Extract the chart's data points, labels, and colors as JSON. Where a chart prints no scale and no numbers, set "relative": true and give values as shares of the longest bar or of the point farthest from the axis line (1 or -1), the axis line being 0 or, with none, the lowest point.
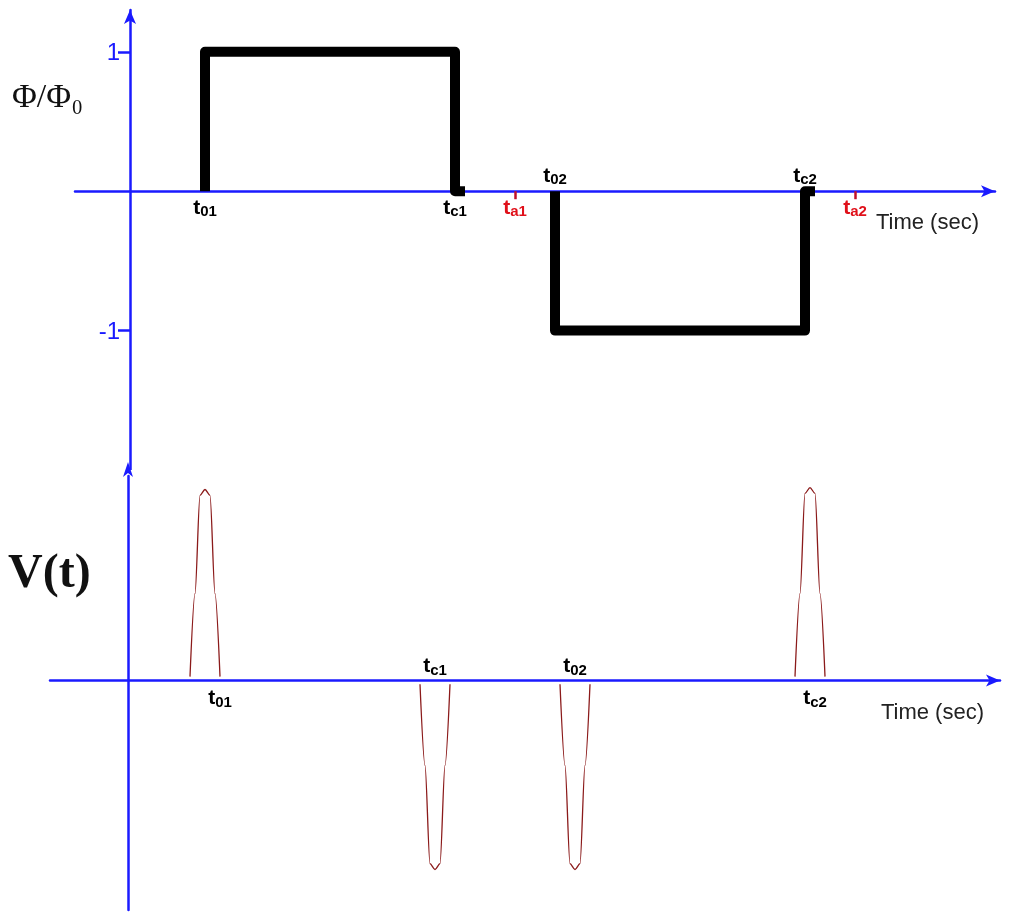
{
  "chart_data": [
    {
      "type": "step",
      "ylabel": "Φ/Φ₀",
      "xlabel": "Time (sec)",
      "ylim": [
        -2,
        1.3
      ],
      "yticks": [
        1,
        -1
      ],
      "categories": [
        null,
        null,
        null,
        null,
        null,
        null,
        null,
        null,
        null,
        null,
        null,
        null,
        null,
        "t$_{01}$",
        null,
        null,
        null,
        null,
        null,
        null,
        null,
        null,
        null,
        null,
        null,
        null,
        null,
        null,
        null,
        null,
        null,
        null,
        null,
        null,
        null,
        null,
        null,
        null,
        "t$_{c1}$",
        null,
        null,
        null,
        null,
        null,
        "t$_{a1}$",
        null,
        null,
        null,
        "t$_{02}$",
        null,
        null,
        null,
        null,
        null,
        null,
        null,
        null,
        null,
        null,
        null,
        null,
        null,
        null,
        null,
        null,
        null,
        null,
        null,
        null,
        null,
        null,
        null,
        null,
        "t$_{c2}$",
        null,
        null,
        null,
        null,
        "t$_{a2}$",
        null,
        null,
        null,
        null,
        null,
        null,
        null,
        null,
        null,
        null,
        null,
        null,
        null,
        null
      ],
      "series": [
        {
          "color": "#000000",
          "values": [
            null,
            null,
            null,
            null,
            null,
            null,
            null,
            null,
            null,
            null,
            null,
            null,
            null,
            0,
            1,
            1,
            1,
            1,
            1,
            1,
            1,
            1,
            1,
            1,
            1,
            1,
            1,
            1,
            1,
            1,
            1,
            1,
            1,
            1,
            1,
            1,
            1,
            1,
            1,
            0,
            null,
            null,
            null,
            null,
            null,
            null,
            null,
            null,
            0,
            -1,
            -1,
            -1,
            -1,
            -1,
            -1,
            -1,
            -1,
            -1,
            -1,
            -1,
            -1,
            -1,
            -1,
            -1,
            -1,
            -1,
            -1,
            -1,
            -1,
            -1,
            -1,
            -1,
            -1,
            -1,
            0,
            null,
            null,
            null,
            null,
            null,
            null,
            null,
            null,
            null,
            null,
            null,
            null,
            null,
            null,
            null,
            null,
            null,
            null
          ]
        }
      ],
      "marker": "none",
      "line_style": "solid"
    },
    {
      "type": "line",
      "relative": true,
      "ylabel": "V(t)",
      "xlabel": "Time (sec)",
      "categories": [
        null,
        null,
        null,
        null,
        null,
        null,
        null,
        null,
        null,
        null,
        null,
        null,
        null,
        null,
        null,
        null,
        null,
        null,
        null,
        null,
        null,
        null,
        null,
        null,
        null,
        null,
        null,
        null,
        null,
        null,
        null,
        null,
        null,
        null,
        "t$_{01}$",
        null,
        null,
        null,
        null,
        null,
        null,
        null,
        null,
        null,
        null,
        null,
        null,
        null,
        null,
        null,
        null,
        null,
        null,
        null,
        null,
        null,
        null,
        null,
        null,
        null,
        null,
        null,
        null,
        null,
        null,
        null,
        null,
        null,
        null,
        null,
        null,
        null,
        null,
        null,
        null,
        null,
        null,
        "t$_{c1}$",
        null,
        null,
        null,
        null,
        null,
        null,
        null,
        null,
        null,
        null,
        null,
        null,
        null,
        null,
        null,
        null,
        null,
        null,
        null,
        null,
        null,
        null,
        null,
        null,
        null,
        null,
        null,
        "t$_{02}$",
        null,
        null,
        null,
        null,
        null,
        null,
        null,
        null,
        null,
        null,
        null,
        null,
        null,
        null,
        null,
        null,
        null,
        null,
        null,
        null,
        null,
        null,
        null,
        null,
        null,
        null,
        null,
        null,
        null,
        null,
        null,
        null,
        null,
        null,
        null,
        null,
        null,
        null,
        null,
        null,
        null,
        null,
        null,
        null,
        null,
        null,
        null,
        "t$_{c2}$",
        null,
        null,
        null,
        null,
        null,
        null,
        null,
        null,
        null,
        null,
        null,
        null,
        null,
        null,
        null,
        null,
        null,
        null,
        null,
        null,
        null,
        null,
        null,
        null,
        null,
        null,
        null,
        null,
        null,
        null,
        null,
        null,
        null,
        null,
        null,
        null,
        null
      ],
      "series": [
        {
          "color": "#8b1a1a",
          "values": [
            null,
            null,
            null,
            null,
            null,
            null,
            null,
            null,
            null,
            null,
            null,
            null,
            null,
            null,
            null,
            null,
            null,
            null,
            null,
            null,
            null,
            null,
            null,
            null,
            null,
            null,
            null,
            null,
            0.02,
            0.45,
            0.96,
            0.99,
            0.96,
            0.45,
            0.02,
            null,
            null,
            null,
            null,
            null,
            null,
            null,
            null,
            null,
            null,
            null,
            null,
            null,
            null,
            null,
            null,
            null,
            null,
            null,
            null,
            null,
            null,
            null,
            null,
            null,
            null,
            null,
            null,
            null,
            null,
            null,
            null,
            null,
            null,
            null,
            null,
            null,
            null,
            null,
            -0.02,
            -0.44,
            -0.95,
            -0.98,
            -0.95,
            -0.44,
            -0.02,
            null,
            null,
            null,
            null,
            null,
            null,
            null,
            null,
            null,
            null,
            null,
            null,
            null,
            null,
            null,
            null,
            null,
            null,
            null,
            null,
            null,
            -0.02,
            -0.44,
            -0.95,
            -0.98,
            -0.95,
            -0.44,
            -0.02,
            null,
            null,
            null,
            null,
            null,
            null,
            null,
            null,
            null,
            null,
            null,
            null,
            null,
            null,
            null,
            null,
            null,
            null,
            null,
            null,
            null,
            null,
            null,
            null,
            null,
            null,
            null,
            null,
            null,
            null,
            null,
            null,
            null,
            null,
            null,
            null,
            null,
            null,
            null,
            null,
            0.02,
            0.45,
            0.97,
            1,
            0.97,
            0.45,
            0.02,
            null,
            null,
            null,
            null,
            null,
            null,
            null,
            null,
            null,
            null,
            null,
            null,
            null,
            null,
            null,
            null,
            null,
            null,
            null,
            null,
            null,
            null,
            null,
            null,
            null,
            null,
            null,
            null,
            null,
            null,
            null,
            null,
            null,
            null,
            null
          ]
        }
      ],
      "marker": "none",
      "line_style": "solid"
    }
  ]
}
